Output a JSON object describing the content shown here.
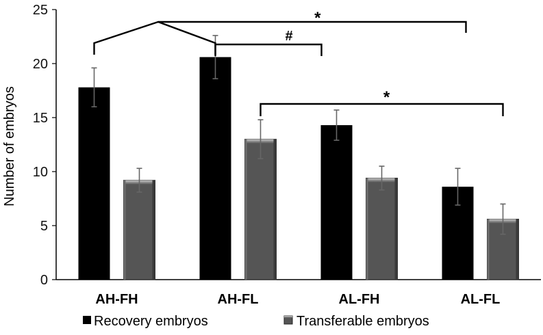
{
  "chart_data": {
    "type": "bar",
    "title": "",
    "xlabel": "",
    "ylabel": "Number of embryos",
    "ylim": [
      0,
      25
    ],
    "yticks": [
      0,
      5,
      10,
      15,
      20,
      25
    ],
    "grid": false,
    "legend_position": "bottom",
    "categories": [
      "AH-FH",
      "AH-FL",
      "AL-FH",
      "AL-FL"
    ],
    "series": [
      {
        "name": "Recovery embryos",
        "values": [
          17.8,
          20.6,
          14.3,
          8.6
        ],
        "errors": [
          1.8,
          2.0,
          1.4,
          1.7
        ],
        "color": "#000000"
      },
      {
        "name": "Transferable embryos",
        "values": [
          9.2,
          13.0,
          9.4,
          5.6
        ],
        "errors": [
          1.1,
          1.8,
          1.1,
          1.4
        ],
        "color": "#555555"
      }
    ],
    "annotations": [
      {
        "text": "*",
        "note": "AH pooled vs AL-FL recovery"
      },
      {
        "text": "#",
        "note": "AH-FL vs AL-FH recovery"
      },
      {
        "text": "*",
        "note": "AH-FL vs AL-FL transferable"
      }
    ]
  }
}
